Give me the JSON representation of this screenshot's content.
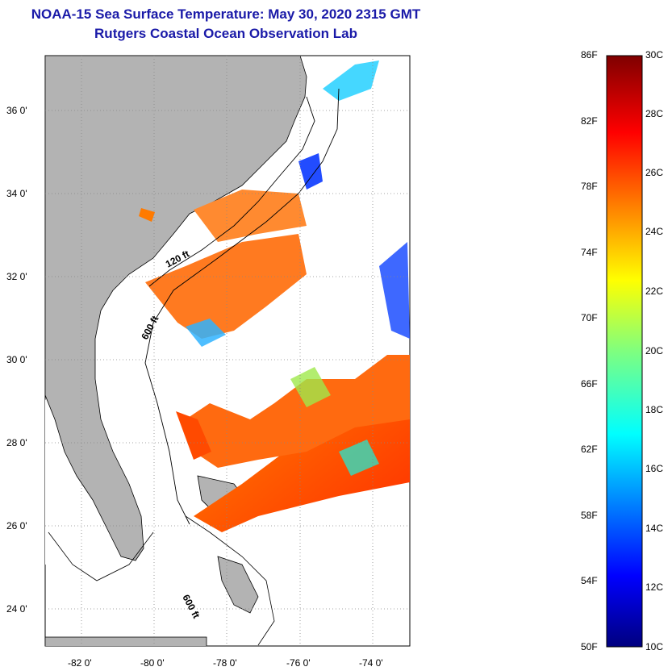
{
  "header": {
    "title": "NOAA-15 Sea Surface Temperature:  May 30, 2020 2315 GMT",
    "subtitle": "Rutgers Coastal Ocean Observation Lab"
  },
  "map": {
    "lat_range": [
      23,
      37.2
    ],
    "lon_range": [
      -83,
      -73
    ],
    "lat_ticks": [
      "24 0'",
      "26 0'",
      "28 0'",
      "30 0'",
      "32 0'",
      "34 0'",
      "36 0'"
    ],
    "lon_ticks": [
      "-82 0'",
      "-80 0'",
      "-78 0'",
      "-76 0'",
      "-74 0'"
    ],
    "contour_labels": [
      "120 ft",
      "600 ft",
      "600 ft"
    ],
    "land_color": "#b3b3b3"
  },
  "colorbar": {
    "f_labels": [
      "86F",
      "82F",
      "78F",
      "74F",
      "70F",
      "66F",
      "62F",
      "58F",
      "54F",
      "50F"
    ],
    "c_labels": [
      "30C",
      "28C",
      "26C",
      "24C",
      "22C",
      "20C",
      "18C",
      "16C",
      "14C",
      "12C",
      "10C"
    ],
    "range_c": [
      10,
      30
    ]
  }
}
